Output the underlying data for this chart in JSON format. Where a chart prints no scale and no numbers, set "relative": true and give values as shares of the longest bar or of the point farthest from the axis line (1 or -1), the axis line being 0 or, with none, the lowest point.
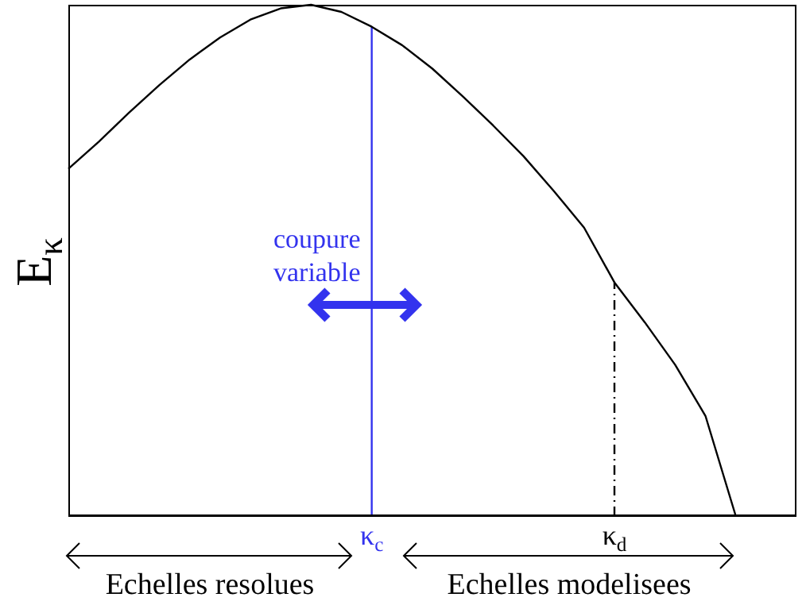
{
  "chart_data": {
    "type": "line",
    "relative": true,
    "ylabel": "E$_{κ}$",
    "categories": [
      null,
      null,
      null,
      null,
      null,
      null,
      null,
      null,
      null,
      null,
      "κ$_{c}$",
      null,
      null,
      null,
      null,
      null,
      null,
      null,
      "κ$_{d}$",
      null,
      null,
      null,
      null,
      null,
      null
    ],
    "series": [
      {
        "color": "#000000",
        "values": [
          0.679,
          0.732,
          0.789,
          0.843,
          0.893,
          0.936,
          0.971,
          0.993,
          1,
          0.986,
          0.957,
          0.921,
          0.875,
          0.821,
          0.764,
          0.704,
          0.636,
          0.564,
          0.457,
          0.379,
          0.296,
          0.196,
          0,
          null,
          null
        ]
      }
    ],
    "ref_lines": [
      {
        "axis": "x",
        "value": "κ$_{c}$",
        "color": "#3333ee",
        "line_style": "solid"
      },
      {
        "axis": "x",
        "value": "κ$_{d}$",
        "color": "#000000",
        "line_style": "dashdot"
      }
    ],
    "annotations": [
      "coupure variable",
      "Echelles resolues",
      "Echelles modelisees"
    ],
    "marker": "none",
    "line_style": "solid"
  }
}
